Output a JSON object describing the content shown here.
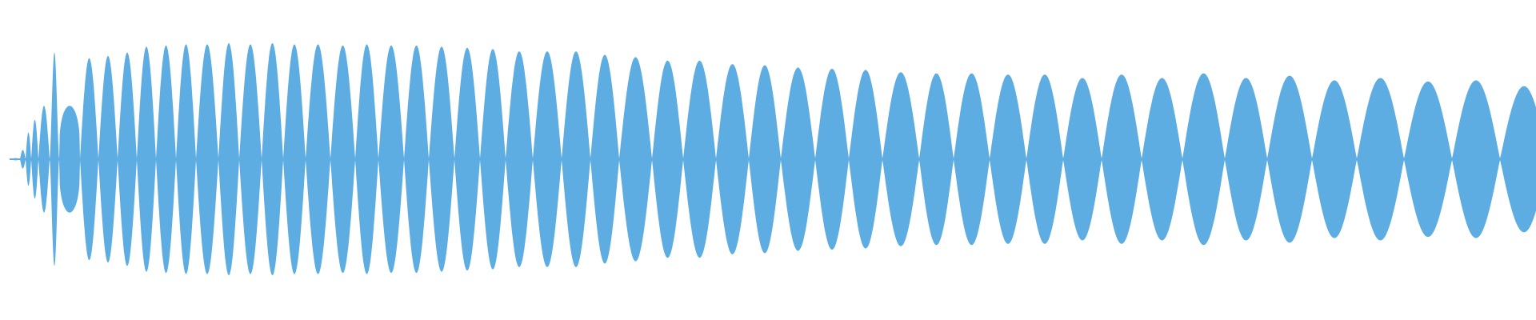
{
  "chart_data": {
    "type": "area",
    "description_kind": "audio waveform envelope",
    "color": "#5dade2",
    "background": "#ffffff",
    "axes_visible": false,
    "grid": false,
    "legend": "none",
    "ylim": [
      -1,
      1
    ],
    "lobe_peak_amplitudes": [
      0.01,
      0.08,
      0.23,
      0.34,
      0.46,
      0.92,
      0.46,
      0.87,
      0.89,
      0.92,
      0.97,
      0.98,
      0.99,
      0.99,
      1.0,
      0.99,
      1.0,
      0.99,
      0.99,
      0.98,
      0.99,
      0.98,
      0.98,
      0.97,
      0.96,
      0.95,
      0.93,
      0.93,
      0.93,
      0.9,
      0.88,
      0.85,
      0.85,
      0.82,
      0.81,
      0.79,
      0.78,
      0.77,
      0.75,
      0.74,
      0.74,
      0.73,
      0.73,
      0.7,
      0.73,
      0.7,
      0.74,
      0.7,
      0.72,
      0.68,
      0.7,
      0.67,
      0.68,
      0.63
    ]
  }
}
